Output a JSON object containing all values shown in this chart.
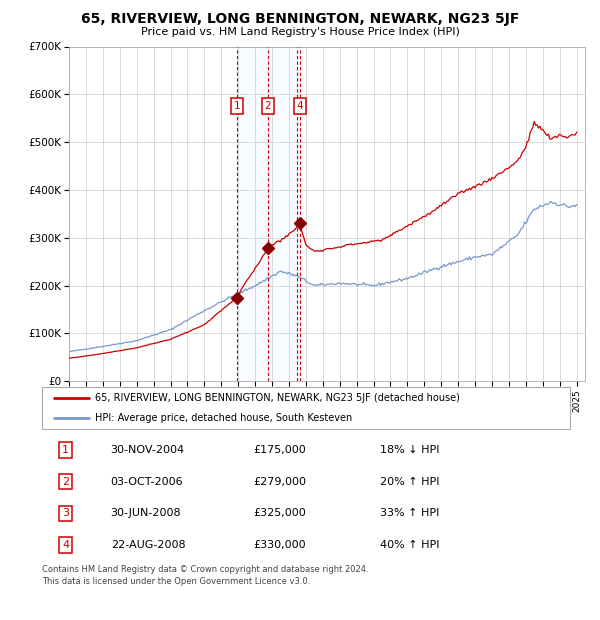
{
  "title": "65, RIVERVIEW, LONG BENNINGTON, NEWARK, NG23 5JF",
  "subtitle": "Price paid vs. HM Land Registry's House Price Index (HPI)",
  "footer": "Contains HM Land Registry data © Crown copyright and database right 2024.\nThis data is licensed under the Open Government Licence v3.0.",
  "legend_line1": "65, RIVERVIEW, LONG BENNINGTON, NEWARK, NG23 5JF (detached house)",
  "legend_line2": "HPI: Average price, detached house, South Kesteven",
  "transactions": [
    {
      "num": 1,
      "date": "30-NOV-2004",
      "price": 175000,
      "pct": "18%",
      "dir": "↓",
      "year_x": 2004.92
    },
    {
      "num": 2,
      "date": "03-OCT-2006",
      "price": 279000,
      "pct": "20%",
      "dir": "↑",
      "year_x": 2006.75
    },
    {
      "num": 3,
      "date": "30-JUN-2008",
      "price": 325000,
      "pct": "33%",
      "dir": "↑",
      "year_x": 2008.5
    },
    {
      "num": 4,
      "date": "22-AUG-2008",
      "price": 330000,
      "pct": "40%",
      "dir": "↑",
      "year_x": 2008.64
    }
  ],
  "price_color": "#cc0000",
  "hpi_color": "#7799cc",
  "shade_color": "#ddeeff",
  "vline_color": "#cc0000",
  "marker_color": "#880000",
  "label_box_color": "#cc0000",
  "ylim": [
    0,
    700000
  ],
  "yticks": [
    0,
    100000,
    200000,
    300000,
    400000,
    500000,
    600000,
    700000
  ],
  "ytick_labels": [
    "£0",
    "£100K",
    "£200K",
    "£300K",
    "£400K",
    "£500K",
    "£600K",
    "£700K"
  ],
  "xlim_start": 1995,
  "xlim_end": 2025.5,
  "hpi_anchors": {
    "1995.0": 62000,
    "1997.0": 73000,
    "1999.0": 85000,
    "2001.0": 108000,
    "2003.0": 148000,
    "2004.5": 175000,
    "2006.0": 200000,
    "2007.5": 230000,
    "2008.5": 220000,
    "2009.5": 200000,
    "2011.0": 205000,
    "2013.0": 200000,
    "2015.0": 215000,
    "2017.0": 240000,
    "2019.0": 260000,
    "2020.0": 265000,
    "2021.5": 305000,
    "2022.5": 360000,
    "2023.5": 375000,
    "2024.5": 365000,
    "2025.0": 368000
  },
  "prop_anchors": {
    "1995.0": 48000,
    "1997.0": 58000,
    "1999.0": 70000,
    "2001.0": 88000,
    "2003.0": 118000,
    "2004.0": 148000,
    "2004.92": 175000,
    "2005.5": 210000,
    "2006.0": 235000,
    "2006.75": 279000,
    "2007.0": 285000,
    "2007.5": 295000,
    "2008.3": 315000,
    "2008.5": 325000,
    "2008.64": 330000,
    "2009.0": 285000,
    "2009.5": 272000,
    "2010.5": 278000,
    "2011.5": 285000,
    "2012.5": 290000,
    "2013.5": 295000,
    "2014.5": 315000,
    "2015.5": 335000,
    "2016.5": 355000,
    "2017.5": 380000,
    "2018.5": 400000,
    "2019.5": 415000,
    "2020.5": 435000,
    "2021.5": 460000,
    "2022.0": 490000,
    "2022.5": 540000,
    "2023.0": 525000,
    "2023.5": 505000,
    "2024.0": 515000,
    "2024.5": 510000,
    "2025.0": 520000
  }
}
